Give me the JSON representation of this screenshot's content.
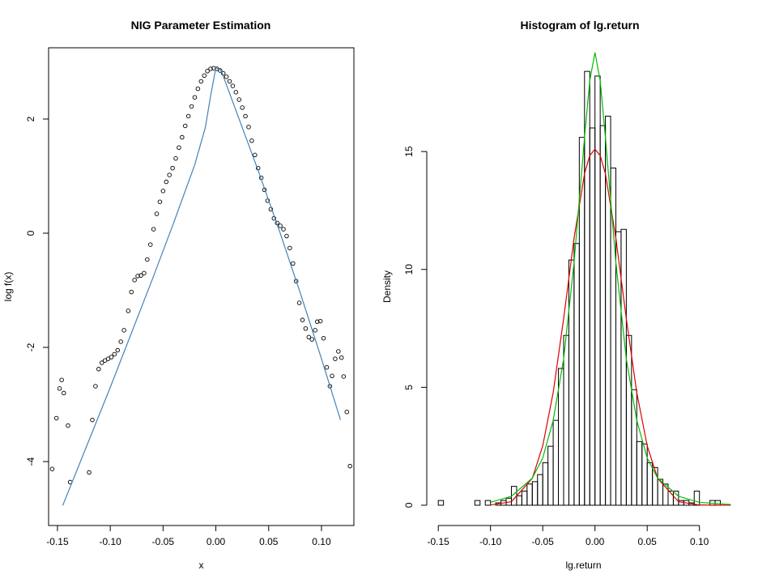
{
  "chart_data": [
    {
      "type": "scatter",
      "title": "NIG Parameter Estimation",
      "x_label": "x",
      "y_label": "log f(x)",
      "xlim": [
        -0.1584,
        0.1307
      ],
      "ylim": [
        -5.12,
        3.248
      ],
      "xticks": [
        -0.15,
        {
          "value": -0.1,
          "label": "-0.10"
        },
        -0.05,
        {
          "value": 0,
          "label": "0.00"
        },
        0.05,
        {
          "value": 0.1,
          "label": "0.10"
        }
      ],
      "yticks": [
        -4,
        -2,
        0,
        2
      ],
      "series": [
        {
          "style": "point",
          "color": "#000000",
          "x": [
            -0.155,
            -0.151,
            -0.148,
            -0.146,
            -0.144,
            -0.14,
            -0.138,
            -0.12,
            -0.117,
            -0.114,
            -0.111,
            -0.108,
            -0.105,
            -0.102,
            -0.099,
            -0.096,
            -0.093,
            -0.09,
            -0.087,
            -0.083,
            -0.08,
            -0.077,
            -0.074,
            -0.071,
            -0.068,
            -0.065,
            -0.062,
            -0.059,
            -0.056,
            -0.053,
            -0.05,
            -0.047,
            -0.044,
            -0.041,
            -0.038,
            -0.035,
            -0.032,
            -0.029,
            -0.026,
            -0.023,
            -0.02,
            -0.017,
            -0.014,
            -0.011,
            -0.008,
            -0.005,
            -0.002,
            0.001,
            0.004,
            0.007,
            0.01,
            0.013,
            0.016,
            0.019,
            0.022,
            0.025,
            0.028,
            0.031,
            0.034,
            0.037,
            0.04,
            0.043,
            0.046,
            0.049,
            0.052,
            0.055,
            0.058,
            0.061,
            0.064,
            0.067,
            0.07,
            0.073,
            0.076,
            0.079,
            0.082,
            0.085,
            0.088,
            0.091,
            0.094,
            0.096,
            0.099,
            0.102,
            0.105,
            0.108,
            0.11,
            0.113,
            0.116,
            0.119,
            0.121,
            0.124,
            0.127
          ],
          "values": [
            -4.13,
            -3.24,
            -2.72,
            -2.57,
            -2.8,
            -3.37,
            -4.36,
            -4.19,
            -3.27,
            -2.68,
            -2.38,
            -2.27,
            -2.23,
            -2.2,
            -2.17,
            -2.12,
            -2.05,
            -1.9,
            -1.7,
            -1.36,
            -1.03,
            -0.82,
            -0.75,
            -0.74,
            -0.7,
            -0.46,
            -0.2,
            0.07,
            0.34,
            0.55,
            0.74,
            0.9,
            1.02,
            1.14,
            1.31,
            1.5,
            1.68,
            1.88,
            2.05,
            2.22,
            2.38,
            2.53,
            2.66,
            2.76,
            2.84,
            2.88,
            2.89,
            2.88,
            2.85,
            2.8,
            2.74,
            2.66,
            2.58,
            2.47,
            2.34,
            2.2,
            2.05,
            1.86,
            1.62,
            1.37,
            1.14,
            0.97,
            0.76,
            0.57,
            0.42,
            0.26,
            0.18,
            0.13,
            0.07,
            -0.05,
            -0.26,
            -0.53,
            -0.84,
            -1.22,
            -1.52,
            -1.67,
            -1.82,
            -1.86,
            -1.7,
            -1.55,
            -1.54,
            -1.84,
            -2.35,
            -2.68,
            -2.5,
            -2.2,
            -2.07,
            -2.18,
            -2.51,
            -3.13,
            -4.08
          ]
        },
        {
          "style": "line",
          "color": "#4682b4",
          "x": [
            -0.145,
            -0.12,
            -0.1,
            -0.08,
            -0.06,
            -0.04,
            -0.02,
            -0.01,
            -0.005,
            0,
            0.005,
            0.01,
            0.02,
            0.04,
            0.06,
            0.08,
            0.1,
            0.118
          ],
          "values": [
            -4.77,
            -3.62,
            -2.7,
            -1.75,
            -0.8,
            0.18,
            1.2,
            1.85,
            2.4,
            2.9,
            2.85,
            2.6,
            2.1,
            1.1,
            0.05,
            -1.05,
            -2.2,
            -3.27
          ]
        }
      ]
    },
    {
      "type": "histogram",
      "title": "Histogram of lg.return",
      "x_label": "lg.return",
      "y_label": "Density",
      "xlim": [
        -0.161,
        0.139
      ],
      "ylim": [
        -0.86,
        19.4
      ],
      "xticks": [
        -0.15,
        {
          "value": -0.1,
          "label": "-0.10"
        },
        -0.05,
        {
          "value": 0,
          "label": "0.00"
        },
        0.05,
        {
          "value": 0.1,
          "label": "0.10"
        }
      ],
      "yticks": [
        0,
        5,
        10,
        15
      ],
      "bins": [
        -0.15,
        -0.145,
        -0.14,
        -0.135,
        -0.13,
        -0.125,
        -0.12,
        -0.115,
        -0.11,
        -0.105,
        -0.1,
        -0.095,
        -0.09,
        -0.085,
        -0.08,
        -0.075,
        -0.07,
        -0.065,
        -0.06,
        -0.055,
        -0.05,
        -0.045,
        -0.04,
        -0.035,
        -0.03,
        -0.025,
        -0.02,
        -0.015,
        -0.01,
        -0.005,
        0,
        0.005,
        0.01,
        0.015,
        0.02,
        0.025,
        0.03,
        0.035,
        0.04,
        0.045,
        0.05,
        0.055,
        0.06,
        0.065,
        0.07,
        0.075,
        0.08,
        0.085,
        0.09,
        0.095,
        0.1,
        0.105,
        0.11,
        0.115,
        0.12,
        0.125,
        0.13
      ],
      "values": [
        0.2,
        0,
        0,
        0,
        0,
        0,
        0,
        0.2,
        0,
        0.2,
        0,
        0.1,
        0.2,
        0.3,
        0.8,
        0.4,
        0.6,
        0.9,
        1.0,
        1.3,
        1.8,
        2.5,
        3.6,
        5.8,
        7.2,
        10.4,
        11.1,
        15.6,
        18.4,
        16.0,
        18.2,
        16.1,
        16.5,
        14.3,
        11.6,
        11.7,
        7.2,
        4.9,
        2.7,
        2.6,
        1.8,
        1.6,
        1.1,
        0.9,
        0.6,
        0.6,
        0.2,
        0.2,
        0.1,
        0.6,
        0,
        0,
        0.2,
        0.2,
        0,
        0
      ],
      "color": "#000000",
      "series": [
        {
          "style": "line",
          "color": "#dd0000",
          "x": [
            -0.1,
            -0.08,
            -0.06,
            -0.05,
            -0.04,
            -0.03,
            -0.02,
            -0.01,
            -0.005,
            0,
            0.005,
            0.01,
            0.02,
            0.03,
            0.04,
            0.05,
            0.06,
            0.08,
            0.1,
            0.13
          ],
          "values": [
            0.01,
            0.15,
            1.14,
            2.52,
            4.78,
            7.91,
            11.33,
            14.06,
            14.83,
            15.1,
            14.83,
            14.06,
            11.33,
            7.91,
            4.78,
            2.52,
            1.14,
            0.15,
            0.01,
            0
          ]
        },
        {
          "style": "line",
          "color": "#00bb00",
          "x": [
            -0.1,
            -0.08,
            -0.06,
            -0.05,
            -0.04,
            -0.03,
            -0.02,
            -0.01,
            -0.005,
            0,
            0.005,
            0.01,
            0.02,
            0.03,
            0.04,
            0.05,
            0.06,
            0.08,
            0.1,
            0.13
          ],
          "values": [
            0.12,
            0.38,
            1.15,
            2.0,
            3.6,
            6.2,
            10.3,
            15.6,
            18.0,
            19.2,
            18.0,
            15.6,
            10.3,
            6.2,
            3.6,
            2.0,
            1.15,
            0.38,
            0.12,
            0.03
          ]
        }
      ]
    }
  ]
}
